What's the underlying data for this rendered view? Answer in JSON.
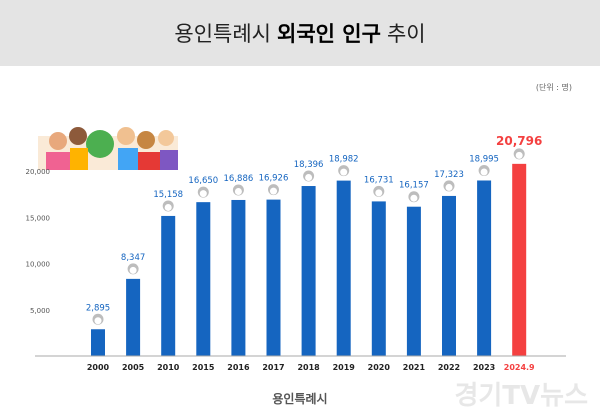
{
  "header": {
    "title_pre": "용인특례시",
    "title_bold": "외국인 인구",
    "title_post": "추이"
  },
  "unit_label": "(단위 : 명)",
  "footer_logo": "용인특례시",
  "watermark": "경기TV뉴스",
  "colors": {
    "bar": "#1565c0",
    "highlight": "#f44040",
    "label": "#1565c0",
    "axis": "#aaaaaa"
  },
  "chart_data": {
    "type": "bar",
    "categories": [
      "2000",
      "2005",
      "2010",
      "2015",
      "2016",
      "2017",
      "2018",
      "2019",
      "2020",
      "2021",
      "2022",
      "2023",
      "2024.9"
    ],
    "values": [
      2895,
      8347,
      15158,
      16650,
      16886,
      16926,
      18396,
      18982,
      16731,
      16157,
      17323,
      18995,
      20796
    ],
    "value_labels": [
      "2,895",
      "8,347",
      "15,158",
      "16,650",
      "16,886",
      "16,926",
      "18,396",
      "18,982",
      "16,731",
      "16,157",
      "17,323",
      "18,995",
      "20,796"
    ],
    "yticks": [
      5000,
      10000,
      15000,
      20000
    ],
    "ytick_labels": [
      "5,000",
      "10,000",
      "15,000",
      "20,000"
    ],
    "ylim": [
      0,
      25000
    ],
    "highlight_index": 12,
    "title": "",
    "xlabel": "",
    "ylabel": "",
    "grid": false
  }
}
